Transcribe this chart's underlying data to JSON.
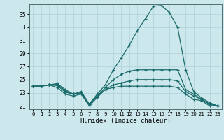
{
  "xlabel": "Humidex (Indice chaleur)",
  "bg_color": "#cde8ec",
  "grid_color": "#aed0d8",
  "line_color": "#1a6b6b",
  "xlim": [
    -0.5,
    23.5
  ],
  "ylim": [
    20.5,
    36.5
  ],
  "yticks": [
    21,
    23,
    25,
    27,
    29,
    31,
    33,
    35
  ],
  "xticks": [
    0,
    1,
    2,
    3,
    4,
    5,
    6,
    7,
    8,
    9,
    10,
    11,
    12,
    13,
    14,
    15,
    16,
    17,
    18,
    19,
    20,
    21,
    22,
    23
  ],
  "lines": [
    {
      "x": [
        0,
        1,
        2,
        3,
        4,
        5,
        6,
        7,
        8,
        9,
        10,
        11,
        12,
        13,
        14,
        15,
        16,
        17,
        18,
        19,
        20,
        21,
        22,
        23
      ],
      "y": [
        24.0,
        24.0,
        24.2,
        24.4,
        23.5,
        22.8,
        23.2,
        21.3,
        22.8,
        24.2,
        26.5,
        28.3,
        30.3,
        32.5,
        34.3,
        36.2,
        36.3,
        35.2,
        33.0,
        26.5,
        23.2,
        22.2,
        21.5,
        21.0
      ]
    },
    {
      "x": [
        0,
        1,
        2,
        3,
        4,
        5,
        6,
        7,
        8,
        9,
        10,
        11,
        12,
        13,
        14,
        15,
        16,
        17,
        18,
        19,
        20,
        21,
        22,
        23
      ],
      "y": [
        24.0,
        24.0,
        24.2,
        24.3,
        23.3,
        22.8,
        23.0,
        21.2,
        22.5,
        23.8,
        25.0,
        25.8,
        26.3,
        26.5,
        26.5,
        26.5,
        26.5,
        26.5,
        26.5,
        23.5,
        22.8,
        22.0,
        21.3,
        21.0
      ]
    },
    {
      "x": [
        0,
        1,
        2,
        3,
        4,
        5,
        6,
        7,
        8,
        9,
        10,
        11,
        12,
        13,
        14,
        15,
        16,
        17,
        18,
        19,
        20,
        21,
        22,
        23
      ],
      "y": [
        24.0,
        24.0,
        24.2,
        24.1,
        23.1,
        22.8,
        23.0,
        21.2,
        22.5,
        23.5,
        24.2,
        24.5,
        24.8,
        25.0,
        25.0,
        25.0,
        25.0,
        25.0,
        24.8,
        23.2,
        22.5,
        22.0,
        21.2,
        21.0
      ]
    },
    {
      "x": [
        0,
        1,
        2,
        3,
        4,
        5,
        6,
        7,
        8,
        9,
        10,
        11,
        12,
        13,
        14,
        15,
        16,
        17,
        18,
        19,
        20,
        21,
        22,
        23
      ],
      "y": [
        24.0,
        24.0,
        24.2,
        23.8,
        22.8,
        22.5,
        22.8,
        21.0,
        22.3,
        23.5,
        23.8,
        24.0,
        24.0,
        24.0,
        24.0,
        24.0,
        24.0,
        24.0,
        23.8,
        22.8,
        22.0,
        21.8,
        21.0,
        21.0
      ]
    }
  ]
}
